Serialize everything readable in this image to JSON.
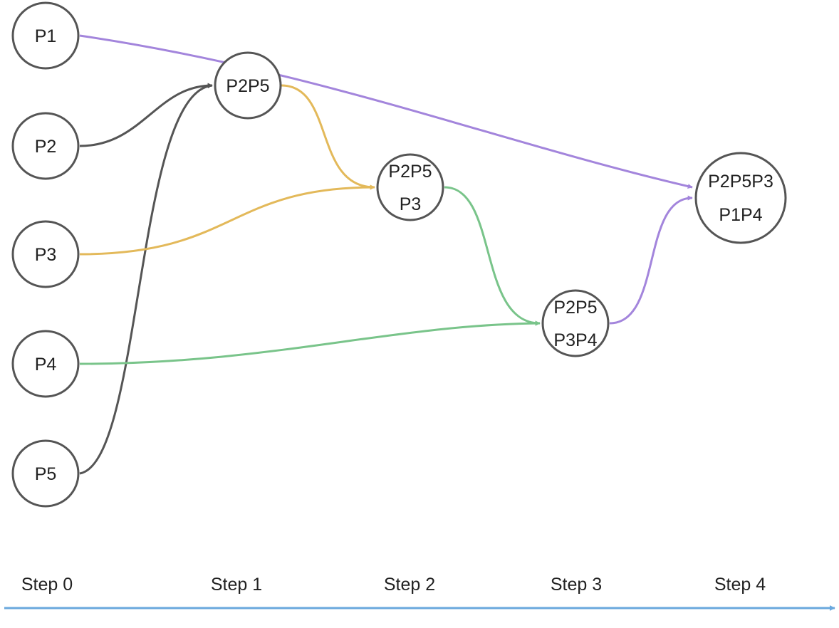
{
  "colors": {
    "node_stroke": "#555555",
    "dark": "#555555",
    "yellow": "#e3b95a",
    "green": "#79c48a",
    "purple": "#a385dc",
    "timeline": "#6aa8dd"
  },
  "nodes": {
    "p1": {
      "lines": [
        "P1"
      ]
    },
    "p2": {
      "lines": [
        "P2"
      ]
    },
    "p3": {
      "lines": [
        "P3"
      ]
    },
    "p4": {
      "lines": [
        "P4"
      ]
    },
    "p5": {
      "lines": [
        "P5"
      ]
    },
    "p2p5": {
      "lines": [
        "P2P5"
      ]
    },
    "p2p5_p3": {
      "lines": [
        "P2P5",
        "P3"
      ]
    },
    "p2p5_p3p4": {
      "lines": [
        "P2P5",
        "P3P4"
      ]
    },
    "p2p5p3_p1p4": {
      "lines": [
        "P2P5P3",
        "P1P4"
      ]
    }
  },
  "edges": [
    {
      "from": "p2",
      "to": "p2p5",
      "color": "dark"
    },
    {
      "from": "p5",
      "to": "p2p5",
      "color": "dark"
    },
    {
      "from": "p2p5",
      "to": "p2p5_p3",
      "color": "yellow"
    },
    {
      "from": "p3",
      "to": "p2p5_p3",
      "color": "yellow"
    },
    {
      "from": "p2p5_p3",
      "to": "p2p5_p3p4",
      "color": "green"
    },
    {
      "from": "p4",
      "to": "p2p5_p3p4",
      "color": "green"
    },
    {
      "from": "p1",
      "to": "p2p5p3_p1p4",
      "color": "purple"
    },
    {
      "from": "p2p5_p3p4",
      "to": "p2p5p3_p1p4",
      "color": "purple"
    }
  ],
  "steps": [
    "Step 0",
    "Step 1",
    "Step 2",
    "Step 3",
    "Step 4"
  ]
}
